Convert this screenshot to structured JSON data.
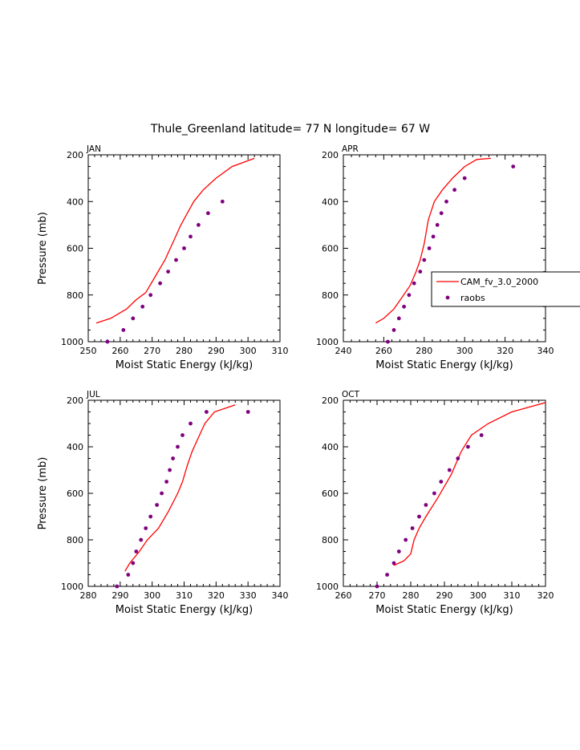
{
  "figure": {
    "title": "Thule_Greenland  latitude= 77 N longitude= 67 W"
  },
  "colors": {
    "model": "#ff0000",
    "raobs": "#800080",
    "axis": "#000000"
  },
  "legend": {
    "placement": "right-edge of APR panel",
    "entries": [
      {
        "label": "CAM_fv_3.0_2000",
        "style": "line"
      },
      {
        "label": "raobs",
        "style": "marker"
      }
    ]
  },
  "chart_data": [
    {
      "type": "line",
      "panel": "JAN",
      "xlabel": "Moist Static Energy (kJ/kg)",
      "ylabel": "Pressure (mb)",
      "xlim": [
        250,
        310
      ],
      "ylim": [
        1000,
        200
      ],
      "xticks": [
        250,
        260,
        270,
        280,
        290,
        300,
        310
      ],
      "yticks": [
        200,
        400,
        600,
        800,
        1000
      ],
      "series": [
        {
          "name": "CAM_fv_3.0_2000",
          "kind": "line",
          "x": [
            252.5,
            257,
            262,
            265,
            268,
            271,
            274,
            277,
            279,
            281,
            283,
            286,
            290,
            295,
            302
          ],
          "y": [
            920,
            900,
            860,
            820,
            790,
            720,
            650,
            560,
            500,
            450,
            400,
            350,
            300,
            250,
            215
          ]
        },
        {
          "name": "raobs",
          "kind": "scatter",
          "x": [
            256,
            261,
            264,
            267,
            269.5,
            272.5,
            275,
            277.5,
            280,
            282,
            284.5,
            287.5,
            292
          ],
          "y": [
            1000,
            950,
            900,
            850,
            800,
            750,
            700,
            650,
            600,
            550,
            500,
            450,
            400
          ]
        }
      ]
    },
    {
      "type": "line",
      "panel": "APR",
      "xlabel": "Moist Static Energy (kJ/kg)",
      "ylabel": "",
      "xlim": [
        240,
        340
      ],
      "ylim": [
        1000,
        200
      ],
      "xticks": [
        240,
        260,
        280,
        300,
        320,
        340
      ],
      "yticks": [
        200,
        400,
        600,
        800,
        1000
      ],
      "series": [
        {
          "name": "CAM_fv_3.0_2000",
          "kind": "line",
          "x": [
            256,
            260,
            265,
            269,
            273,
            276,
            278,
            280,
            282,
            285,
            289,
            294,
            300,
            306,
            313
          ],
          "y": [
            920,
            900,
            860,
            810,
            760,
            700,
            650,
            580,
            480,
            400,
            350,
            300,
            250,
            220,
            215
          ]
        },
        {
          "name": "raobs",
          "kind": "scatter",
          "x": [
            262,
            265,
            267.5,
            270,
            272.5,
            275,
            278,
            280,
            282.5,
            284.5,
            286.5,
            288.5,
            291,
            295,
            300,
            324
          ],
          "y": [
            1000,
            950,
            900,
            850,
            800,
            750,
            700,
            650,
            600,
            550,
            500,
            450,
            400,
            350,
            300,
            250
          ]
        }
      ]
    },
    {
      "type": "line",
      "panel": "JUL",
      "xlabel": "Moist Static Energy (kJ/kg)",
      "ylabel": "Pressure (mb)",
      "xlim": [
        280,
        340
      ],
      "ylim": [
        1000,
        200
      ],
      "xticks": [
        280,
        290,
        300,
        310,
        320,
        330,
        340
      ],
      "yticks": [
        200,
        400,
        600,
        800,
        1000
      ],
      "series": [
        {
          "name": "CAM_fv_3.0_2000",
          "kind": "line",
          "x": [
            291.5,
            293,
            296,
            298.5,
            302,
            305,
            308,
            309.5,
            311,
            312.5,
            314.5,
            316.5,
            319.5,
            326
          ],
          "y": [
            935,
            900,
            850,
            800,
            750,
            680,
            600,
            550,
            480,
            420,
            360,
            300,
            250,
            220
          ]
        },
        {
          "name": "raobs",
          "kind": "scatter",
          "x": [
            289,
            292.5,
            294,
            295,
            296.5,
            298,
            299.5,
            301.5,
            303,
            304.5,
            305.5,
            306.5,
            308,
            309.5,
            312,
            317,
            330
          ],
          "y": [
            1000,
            950,
            900,
            850,
            800,
            750,
            700,
            650,
            600,
            550,
            500,
            450,
            400,
            350,
            300,
            250,
            250
          ]
        }
      ]
    },
    {
      "type": "line",
      "panel": "OCT",
      "xlabel": "Moist Static Energy (kJ/kg)",
      "ylabel": "",
      "xlim": [
        260,
        320
      ],
      "ylim": [
        1000,
        200
      ],
      "xticks": [
        260,
        270,
        280,
        290,
        300,
        310,
        320
      ],
      "yticks": [
        200,
        400,
        600,
        800,
        1000
      ],
      "series": [
        {
          "name": "CAM_fv_3.0_2000",
          "kind": "line",
          "x": [
            275,
            278,
            280,
            281,
            282.5,
            284.5,
            288,
            292,
            295,
            298,
            303,
            310,
            320
          ],
          "y": [
            910,
            890,
            860,
            800,
            750,
            700,
            620,
            520,
            420,
            350,
            300,
            250,
            210
          ]
        },
        {
          "name": "raobs",
          "kind": "scatter",
          "x": [
            270,
            273,
            275,
            276.5,
            278.5,
            280.5,
            282.5,
            284.5,
            287,
            289,
            291.5,
            294,
            297,
            301
          ],
          "y": [
            1000,
            950,
            900,
            850,
            800,
            750,
            700,
            650,
            600,
            550,
            500,
            450,
            400,
            350
          ]
        }
      ]
    }
  ]
}
